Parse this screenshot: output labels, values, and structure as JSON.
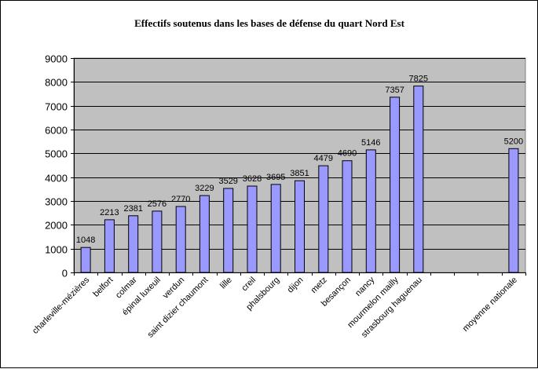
{
  "chart_data": {
    "type": "bar",
    "title": "Effectifs soutenus dans les bases de défense du quart Nord Est",
    "xlabel": "",
    "ylabel": "",
    "ylim": [
      0,
      9000
    ],
    "yticks": [
      0,
      1000,
      2000,
      3000,
      4000,
      5000,
      6000,
      7000,
      8000,
      9000
    ],
    "grid": true,
    "legend": "none",
    "colors": {
      "plot_background": "#c0c0c0",
      "bar_fill": "#9999ff",
      "bar_stroke": "#000000",
      "gridline": "#000000"
    },
    "categories": [
      "charleville-mézières",
      "belfort",
      "colmar",
      "épinal luxeuil",
      "verdun",
      "saint dizier chaumont",
      "lille",
      "creil",
      "phalsbourg",
      "dijon",
      "metz",
      "besançon",
      "nancy",
      "mourmelon mailly",
      "strasbourg haguenau",
      "",
      "",
      "",
      "moyenne nationale"
    ],
    "values": [
      1048,
      2213,
      2381,
      2576,
      2770,
      3229,
      3529,
      3628,
      3695,
      3851,
      4479,
      4690,
      5146,
      7357,
      7825,
      null,
      null,
      null,
      5200
    ],
    "data_labels": [
      "1048",
      "2213",
      "2381",
      "2576",
      "2770",
      "3229",
      "3529",
      "3628",
      "3695",
      "3851",
      "4479",
      "4690",
      "5146",
      "7357",
      "7825",
      "",
      "",
      "",
      "5200"
    ]
  }
}
